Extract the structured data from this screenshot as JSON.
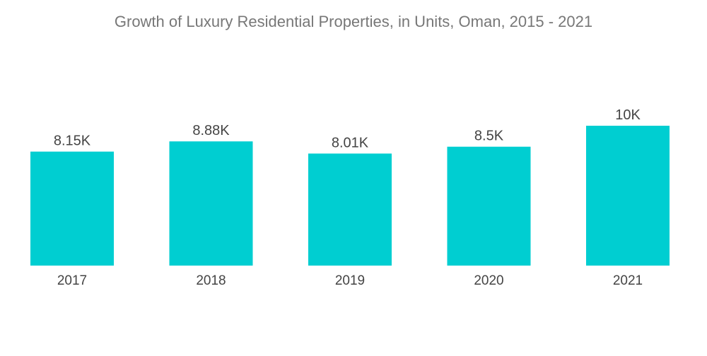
{
  "chart_data": {
    "type": "bar",
    "title": "Growth of Luxury Residential Properties, in Units, Oman, 2015 - 2021",
    "categories": [
      "2017",
      "2018",
      "2019",
      "2020",
      "2021"
    ],
    "values": [
      8150,
      8880,
      8010,
      8500,
      10000
    ],
    "value_labels": [
      "8.15K",
      "8.88K",
      "8.01K",
      "8.5K",
      "10K"
    ],
    "xlabel": "",
    "ylabel": "",
    "ylim": [
      0,
      10800
    ],
    "grid": false,
    "legend": "none",
    "bar_color": "#00CED1"
  }
}
